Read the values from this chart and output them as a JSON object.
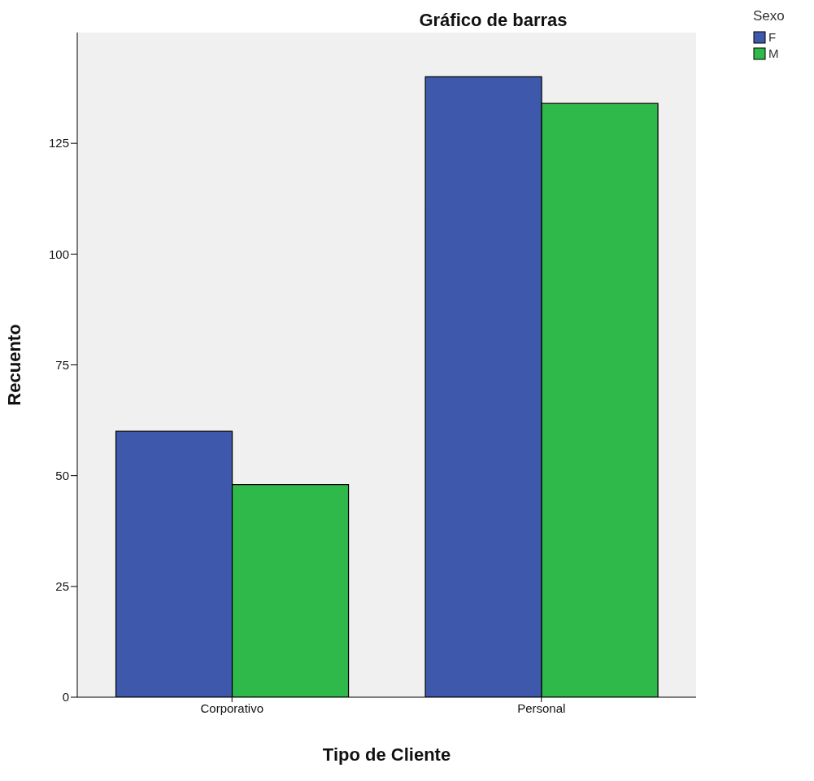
{
  "chart_data": {
    "type": "bar",
    "title": "Gráfico de barras",
    "xlabel": "Tipo de Cliente",
    "ylabel": "Recuento",
    "legend_title": "Sexo",
    "categories": [
      "Corporativo",
      "Personal"
    ],
    "series": [
      {
        "name": "F",
        "color": "#3e58ac",
        "values": [
          60,
          140
        ]
      },
      {
        "name": "M",
        "color": "#2eb94a",
        "values": [
          48,
          134
        ]
      }
    ],
    "ylim": [
      0,
      150
    ],
    "yticks": [
      0,
      25,
      50,
      75,
      100,
      125
    ],
    "legend": "top right"
  }
}
